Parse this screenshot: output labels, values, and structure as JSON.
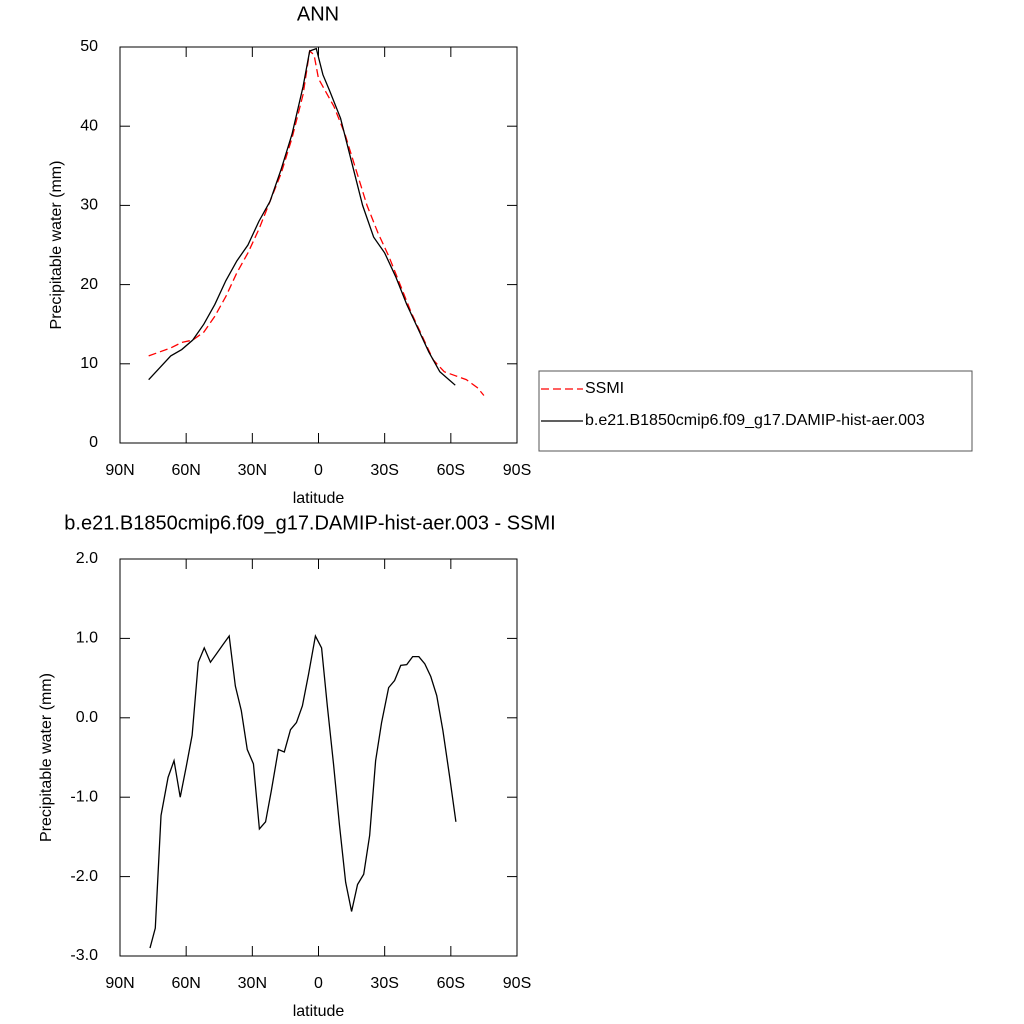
{
  "chart_data": [
    {
      "type": "line",
      "title": "ANN",
      "xlabel": "latitude",
      "ylabel": "Precipitable water (mm)",
      "xlim": [
        90,
        -90
      ],
      "xticks": [
        {
          "value": 90,
          "label": "90N"
        },
        {
          "value": 60,
          "label": "60N"
        },
        {
          "value": 30,
          "label": "30N"
        },
        {
          "value": 0,
          "label": "0"
        },
        {
          "value": -30,
          "label": "30S"
        },
        {
          "value": -60,
          "label": "60S"
        },
        {
          "value": -90,
          "label": "90S"
        }
      ],
      "ylim": [
        0,
        50
      ],
      "yticks": [
        0,
        10,
        20,
        30,
        40,
        50
      ],
      "legend": "right",
      "series": [
        {
          "name": "SSMI",
          "color": "#ff0000",
          "dashed": true,
          "x": [
            77,
            72,
            67,
            62,
            57,
            52,
            47,
            42,
            37,
            32,
            27,
            22,
            17,
            12,
            7,
            4,
            2,
            0,
            -3,
            -7,
            -12,
            -17,
            -22,
            -27,
            -32,
            -37,
            -42,
            -47,
            -52,
            -57,
            -62,
            -67,
            -72,
            -75
          ],
          "values": [
            11.0,
            11.5,
            12.0,
            12.7,
            13.0,
            14.0,
            16.0,
            18.5,
            21.5,
            24.0,
            27.0,
            30.5,
            34.0,
            38.5,
            44.0,
            49.5,
            49.0,
            46.0,
            44.5,
            42.5,
            39.0,
            34.5,
            30.0,
            26.5,
            23.5,
            20.0,
            16.5,
            13.5,
            10.5,
            9.0,
            8.5,
            8.0,
            7.0,
            6.0
          ]
        },
        {
          "name": "b.e21.B1850cmip6.f09_g17.DAMIP-hist-aer.003",
          "color": "#000000",
          "dashed": false,
          "x": [
            77,
            72,
            67,
            62,
            57,
            52,
            47,
            42,
            37,
            32,
            27,
            22,
            17,
            12,
            7,
            4,
            1,
            -2,
            -5,
            -10,
            -15,
            -20,
            -25,
            -30,
            -35,
            -40,
            -45,
            -50,
            -55,
            -62
          ],
          "values": [
            8.0,
            9.5,
            11.0,
            11.8,
            13.0,
            15.0,
            17.5,
            20.5,
            23.0,
            25.0,
            28.0,
            30.5,
            34.5,
            39.0,
            45.0,
            49.5,
            49.8,
            46.5,
            44.5,
            41.0,
            35.5,
            30.0,
            26.0,
            24.0,
            21.0,
            17.5,
            14.5,
            11.5,
            9.0,
            7.3
          ]
        }
      ]
    },
    {
      "type": "line",
      "title": "b.e21.B1850cmip6.f09_g17.DAMIP-hist-aer.003 - SSMI",
      "xlabel": "latitude",
      "ylabel": "Precipitable water (mm)",
      "xlim": [
        90,
        -90
      ],
      "xticks": [
        {
          "value": 90,
          "label": "90N"
        },
        {
          "value": 60,
          "label": "60N"
        },
        {
          "value": 30,
          "label": "30N"
        },
        {
          "value": 0,
          "label": "0"
        },
        {
          "value": -30,
          "label": "30S"
        },
        {
          "value": -60,
          "label": "60S"
        },
        {
          "value": -90,
          "label": "90S"
        }
      ],
      "ylim": [
        -3,
        2
      ],
      "yticks": [
        {
          "value": -3,
          "label": "-3.0"
        },
        {
          "value": -2,
          "label": "-2.0"
        },
        {
          "value": -1,
          "label": "-1.0"
        },
        {
          "value": 0,
          "label": "0.0"
        },
        {
          "value": 1,
          "label": "1.0"
        },
        {
          "value": 2,
          "label": "2.0"
        }
      ],
      "color": "#000000",
      "x": [
        76.4,
        74,
        71.4,
        68.2,
        65.5,
        62.7,
        60,
        57.3,
        54.5,
        51.8,
        49,
        46.4,
        43.6,
        40.5,
        37.7,
        35,
        32.3,
        29.5,
        26.8,
        24,
        21.4,
        18.2,
        15.5,
        12.7,
        10,
        7.3,
        4.5,
        1.4,
        -1.4,
        -4,
        -6.8,
        -9.5,
        -12.3,
        -15,
        -17.7,
        -20.5,
        -23.2,
        -25.9,
        -28.6,
        -31.8,
        -34.5,
        -37.3,
        -40,
        -42.7,
        -45.5,
        -48.2,
        -50.9,
        -53.6,
        -56.4,
        -59.5,
        -62.3
      ],
      "values": [
        -2.9,
        -2.65,
        -1.23,
        -0.75,
        -0.54,
        -1.0,
        -0.62,
        -0.22,
        0.7,
        0.88,
        0.7,
        0.8,
        0.91,
        1.03,
        0.4,
        0.09,
        -0.4,
        -0.58,
        -1.4,
        -1.31,
        -0.92,
        -0.4,
        -0.43,
        -0.15,
        -0.06,
        0.15,
        0.55,
        1.03,
        0.88,
        0.15,
        -0.58,
        -1.35,
        -2.07,
        -2.44,
        -2.1,
        -1.97,
        -1.48,
        -0.54,
        -0.06,
        0.38,
        0.47,
        0.66,
        0.67,
        0.77,
        0.77,
        0.68,
        0.52,
        0.28,
        -0.16,
        -0.75,
        -1.31
      ]
    }
  ]
}
